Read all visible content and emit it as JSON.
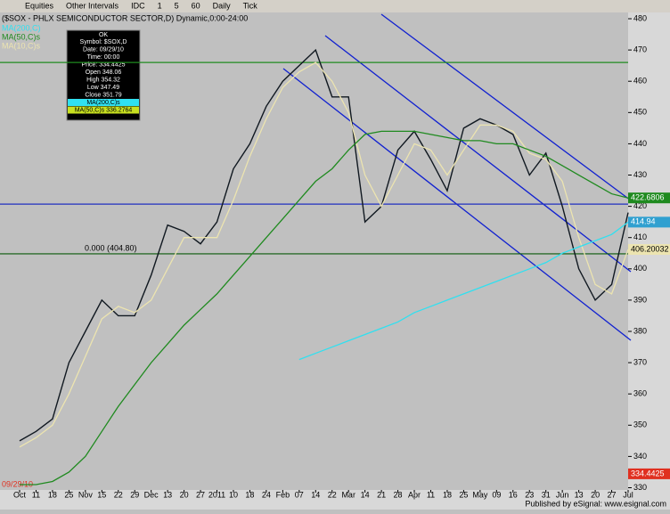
{
  "toolbar": {
    "items": [
      "Equities",
      "Other Intervals",
      "IDC",
      "1",
      "5",
      "60",
      "Daily",
      "Tick"
    ]
  },
  "header": "($SOX - PHLX SEMICONDUCTOR SECTOR,D) Dynamic,0:00-24:00",
  "study_legend": [
    "MA(200,C)",
    "MA(50,C)s",
    "MA(10,C)s"
  ],
  "data_window": {
    "title": "OK",
    "rows": [
      "Symbol: $SOX,D",
      "Date: 09/29/10",
      "Time: 00:00",
      "Price: 334.4425",
      "Open 348.06",
      "High 354.32",
      "Low 347.49",
      "Close 351.79",
      "MA(200,C)s",
      "MA(50,C)s 336.2764"
    ]
  },
  "cursor_date": "09/29/10",
  "footer": "Published by eSignal: www.esignal.com",
  "chart_data": {
    "type": "line",
    "categories": [
      "Oct",
      "11",
      "18",
      "25",
      "Nov",
      "15",
      "22",
      "29",
      "Dec",
      "13",
      "20",
      "27",
      "2011",
      "10",
      "18",
      "24",
      "Feb",
      "07",
      "14",
      "22",
      "Mar",
      "14",
      "21",
      "28",
      "Apr",
      "11",
      "18",
      "25",
      "May",
      "09",
      "16",
      "23",
      "31",
      "Jun",
      "13",
      "20",
      "27",
      "Jul"
    ],
    "series": [
      {
        "name": "$SOX",
        "color": "#101820",
        "values": [
          345,
          348,
          352,
          370,
          380,
          390,
          385,
          385,
          398,
          414,
          412,
          408,
          415,
          432,
          440,
          452,
          460,
          465,
          470,
          455,
          455,
          415,
          420,
          438,
          444,
          435,
          425,
          445,
          448,
          446,
          443,
          430,
          437,
          420,
          400,
          390,
          395,
          418
        ]
      },
      {
        "name": "MA(10,C)s",
        "color": "#ece4b0",
        "values": [
          343,
          346,
          350,
          360,
          372,
          384,
          388,
          386,
          390,
          400,
          410,
          410,
          410,
          422,
          436,
          448,
          458,
          463,
          466,
          460,
          450,
          430,
          420,
          430,
          440,
          438,
          430,
          438,
          446,
          446,
          444,
          437,
          435,
          428,
          410,
          395,
          392,
          406.20032
        ]
      },
      {
        "name": "MA(50,C)s",
        "color": "#1f8a1f",
        "values": [
          331,
          331,
          332,
          335,
          340,
          348,
          356,
          363,
          370,
          376,
          382,
          387,
          392,
          398,
          404,
          410,
          416,
          422,
          428,
          432,
          438,
          443,
          444,
          444,
          444,
          443,
          442,
          441,
          441,
          440,
          440,
          438,
          436,
          433,
          430,
          427,
          424,
          422.6806
        ]
      },
      {
        "name": "MA(200,C)",
        "color": "#30e0f0",
        "values": [
          null,
          null,
          null,
          null,
          null,
          null,
          null,
          null,
          null,
          null,
          null,
          null,
          null,
          null,
          null,
          null,
          null,
          371,
          373,
          375,
          377,
          379,
          381,
          383,
          386,
          388,
          390,
          392,
          394,
          396,
          398,
          400,
          402,
          405,
          407,
          409,
          411,
          414.94
        ]
      }
    ],
    "flags": [
      {
        "value": 422.6806,
        "color": "#1f8a1f"
      },
      {
        "value": 414.94,
        "color": "#30a0d0"
      },
      {
        "value": 406.20032,
        "color": "#ece4b0"
      },
      {
        "value": 334.4425,
        "color": "#e03020"
      }
    ],
    "hlines": [
      {
        "value": 466,
        "color": "#1f8a1f"
      },
      {
        "value": 420.7,
        "color": "#2030c0"
      },
      {
        "value": 404.8,
        "color": "#0a5a0a",
        "label": "0.000 (404.80)"
      }
    ],
    "ylim": [
      329,
      482
    ],
    "yticks": [
      330,
      340,
      350,
      360,
      370,
      380,
      390,
      400,
      410,
      420,
      430,
      440,
      450,
      460,
      470,
      480
    ],
    "grid": false
  }
}
